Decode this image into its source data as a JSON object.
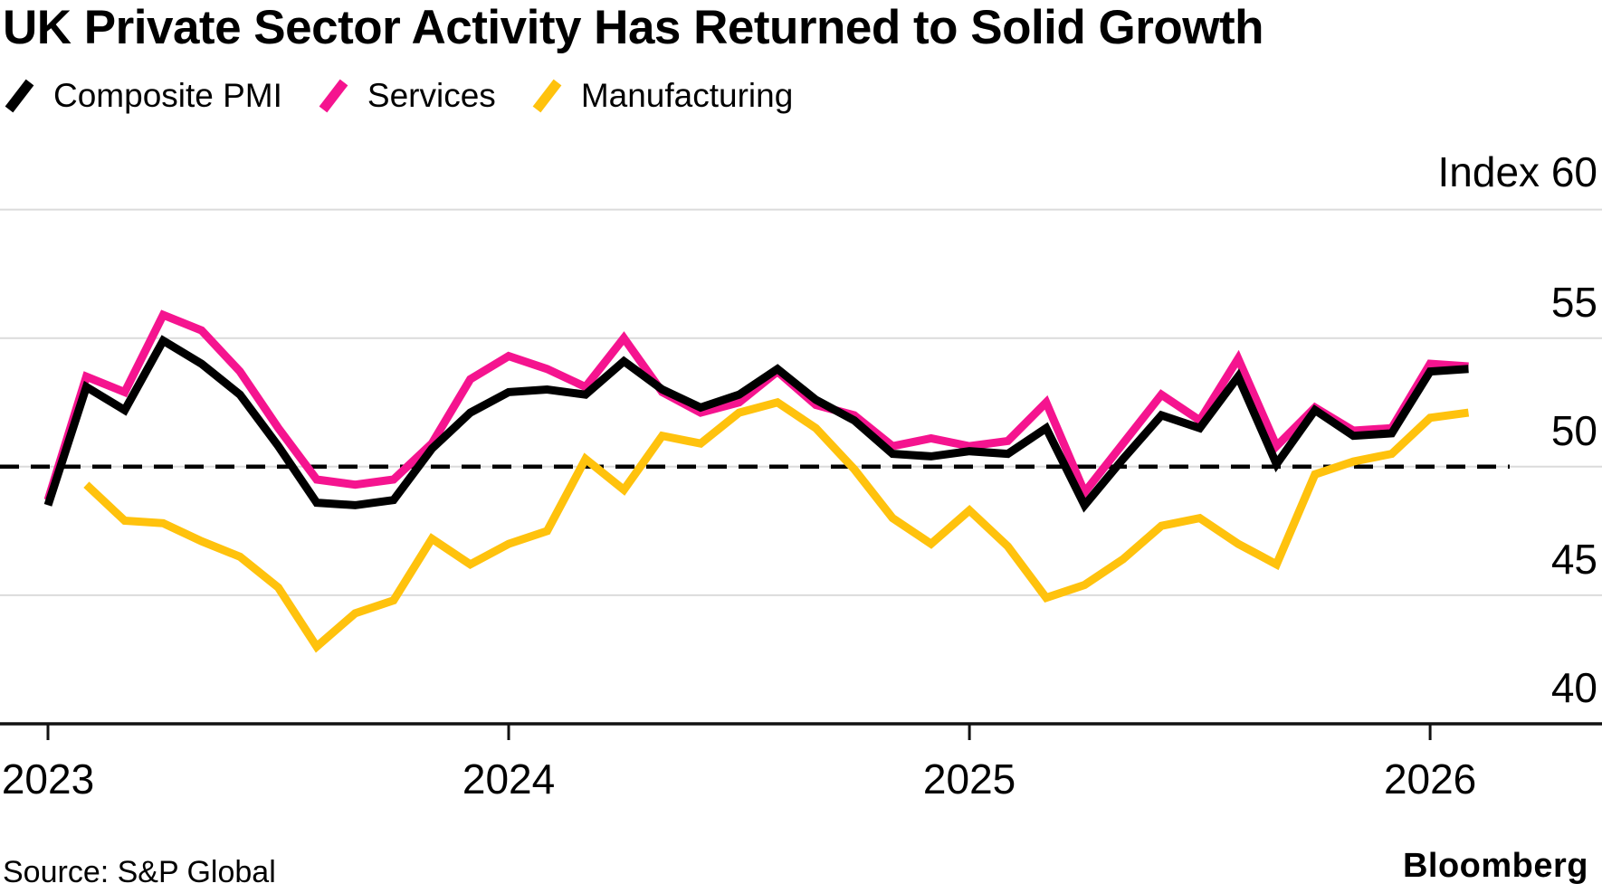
{
  "header": {
    "title": "UK Private Sector Activity Has Returned to Solid Growth"
  },
  "legend": [
    {
      "label": "Composite PMI",
      "color": "#000000"
    },
    {
      "label": "Services",
      "color": "#F5148F"
    },
    {
      "label": "Manufacturing",
      "color": "#FFC20D"
    }
  ],
  "footer": {
    "source": "Source: S&P Global",
    "brand": "Bloomberg"
  },
  "chart_data": {
    "type": "line",
    "title": "UK Private Sector Activity Has Returned to Solid Growth",
    "x_unit": "month",
    "x_start": "2023-01",
    "x_end": "2026-02",
    "x_tick_labels": [
      "2023",
      "2024",
      "2025",
      "2026"
    ],
    "y_axis_label": "Index 60",
    "ylim": [
      40,
      60
    ],
    "y_ticks": [
      40,
      45,
      50,
      55,
      60
    ],
    "reference_line": 50,
    "grid": true,
    "legend_position": "top-left",
    "series": [
      {
        "name": "Manufacturing",
        "color": "#FFC20D",
        "start_month": "2023-02",
        "values": [
          49.3,
          47.9,
          47.8,
          47.1,
          46.5,
          45.3,
          43.0,
          44.3,
          44.8,
          47.2,
          46.2,
          47.0,
          47.5,
          50.3,
          49.1,
          51.2,
          50.9,
          52.1,
          52.5,
          51.5,
          49.9,
          48.0,
          47.0,
          48.3,
          46.9,
          44.9,
          45.4,
          46.4,
          47.7,
          48.0,
          47.0,
          46.2,
          49.7,
          50.2,
          50.5,
          51.9,
          52.1
        ]
      },
      {
        "name": "Services",
        "color": "#F5148F",
        "start_month": "2023-01",
        "values": [
          48.7,
          53.5,
          52.9,
          55.9,
          55.3,
          53.7,
          51.5,
          49.5,
          49.3,
          49.5,
          50.9,
          53.4,
          54.3,
          53.8,
          53.1,
          55.0,
          52.9,
          52.1,
          52.5,
          53.7,
          52.4,
          52.0,
          50.8,
          51.1,
          50.8,
          51.0,
          52.5,
          49.0,
          50.9,
          52.8,
          51.8,
          54.2,
          50.8,
          52.3,
          51.4,
          51.5,
          54.0,
          53.9
        ]
      },
      {
        "name": "Composite PMI",
        "color": "#000000",
        "start_month": "2023-01",
        "values": [
          48.5,
          53.1,
          52.2,
          54.9,
          54.0,
          52.8,
          50.8,
          48.6,
          48.5,
          48.7,
          50.7,
          52.1,
          52.9,
          53.0,
          52.8,
          54.1,
          53.0,
          52.3,
          52.8,
          53.8,
          52.6,
          51.8,
          50.5,
          50.4,
          50.6,
          50.5,
          51.5,
          48.5,
          50.3,
          52.0,
          51.5,
          53.5,
          50.1,
          52.2,
          51.2,
          51.3,
          53.7,
          53.8
        ]
      }
    ]
  }
}
